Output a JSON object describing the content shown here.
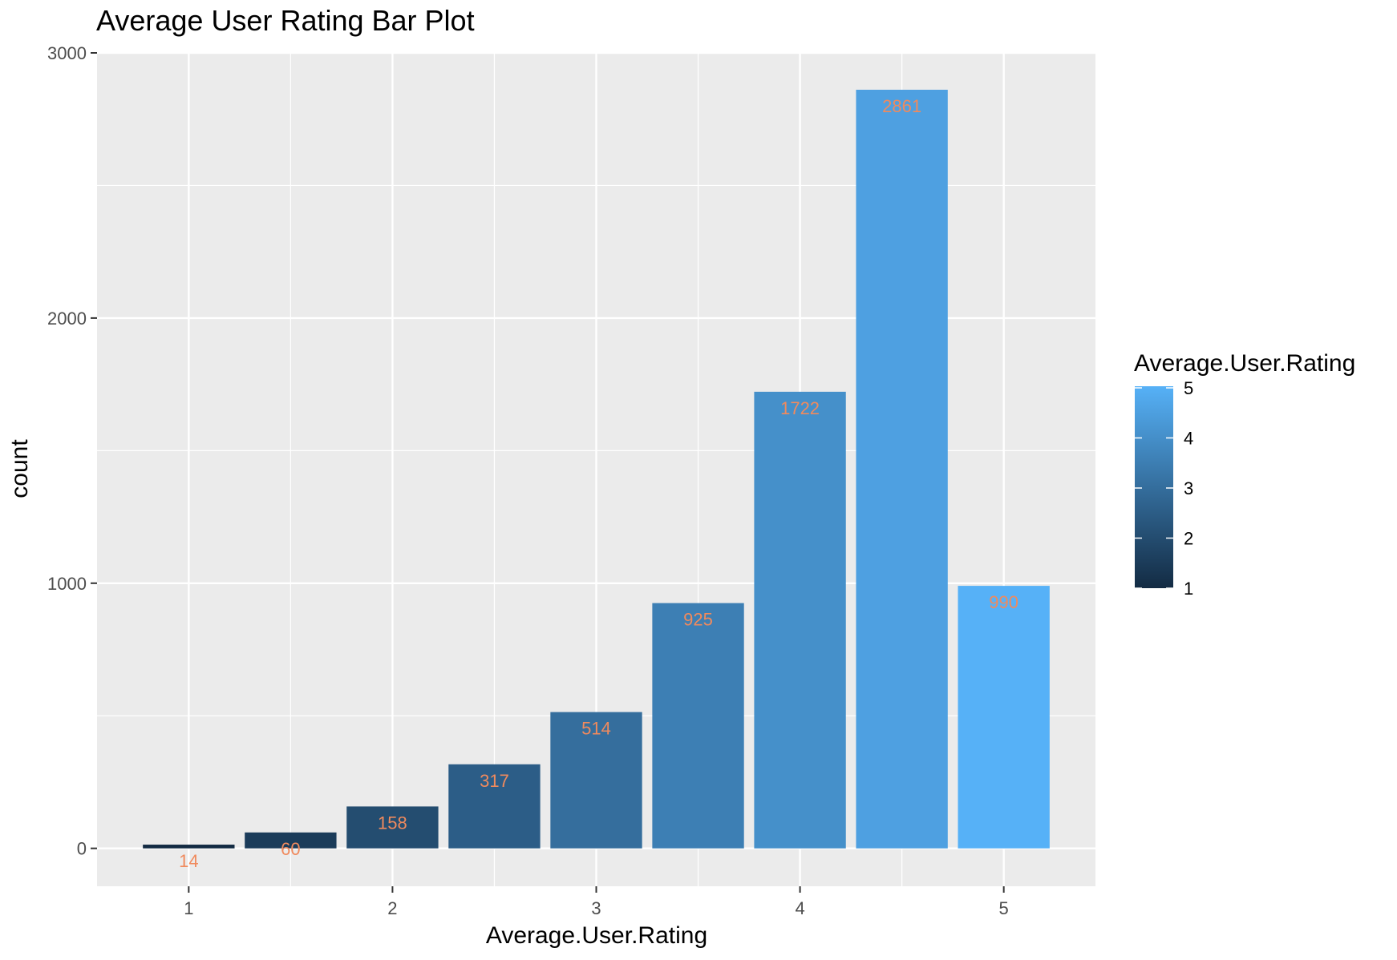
{
  "chart_data": {
    "type": "bar",
    "title": "Average User Rating Bar Plot",
    "xlabel": "Average.User.Rating",
    "ylabel": "count",
    "x": [
      1,
      1.5,
      2,
      2.5,
      3,
      3.5,
      4,
      4.5,
      5
    ],
    "values": [
      14,
      60,
      158,
      317,
      514,
      925,
      1722,
      2861,
      990
    ],
    "data_labels": [
      "14",
      "60",
      "158",
      "317",
      "514",
      "925",
      "1722",
      "2861",
      "990"
    ],
    "xlim": [
      0.55,
      5.45
    ],
    "ylim": [
      -143,
      3000
    ],
    "x_ticks": [
      1,
      2,
      3,
      4,
      5
    ],
    "x_tick_labels": [
      "1",
      "2",
      "3",
      "4",
      "5"
    ],
    "y_ticks": [
      0,
      1000,
      2000,
      3000
    ],
    "y_tick_labels": [
      "0",
      "1000",
      "2000",
      "3000"
    ],
    "grid": true,
    "panel_color": "#ebebeb",
    "grid_color": "#ffffff",
    "label_color": "#f08a5d",
    "fill_scale": {
      "low": "#132b43",
      "high": "#56b1f7"
    },
    "legend": {
      "title": "Average.User.Rating",
      "position": "right",
      "ticks": [
        1,
        2,
        3,
        4,
        5
      ],
      "tick_labels": [
        "1",
        "2",
        "3",
        "4",
        "5"
      ]
    }
  }
}
